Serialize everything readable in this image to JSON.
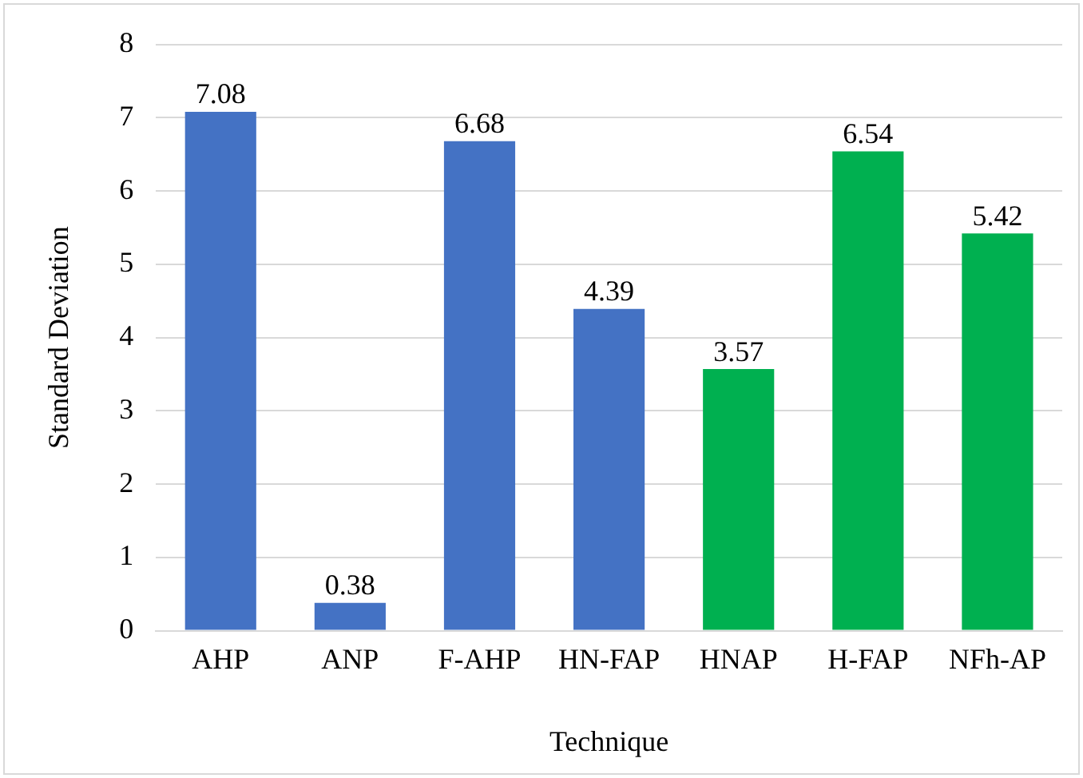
{
  "chart_data": {
    "type": "bar",
    "xlabel": "Technique",
    "ylabel": "Standard Deviation",
    "categories": [
      "AHP",
      "ANP",
      "F-AHP",
      "HN-FAP",
      "HNAP",
      "H-FAP",
      "NFh-AP"
    ],
    "values": [
      7.08,
      0.38,
      6.68,
      4.39,
      3.57,
      6.54,
      5.42
    ],
    "colors": [
      "#4472c4",
      "#4472c4",
      "#4472c4",
      "#4472c4",
      "#00b050",
      "#00b050",
      "#00b050"
    ],
    "ylim": [
      0,
      8
    ],
    "yticks": [
      0,
      1,
      2,
      3,
      4,
      5,
      6,
      7,
      8
    ],
    "grid": "y",
    "data_labels": true
  }
}
